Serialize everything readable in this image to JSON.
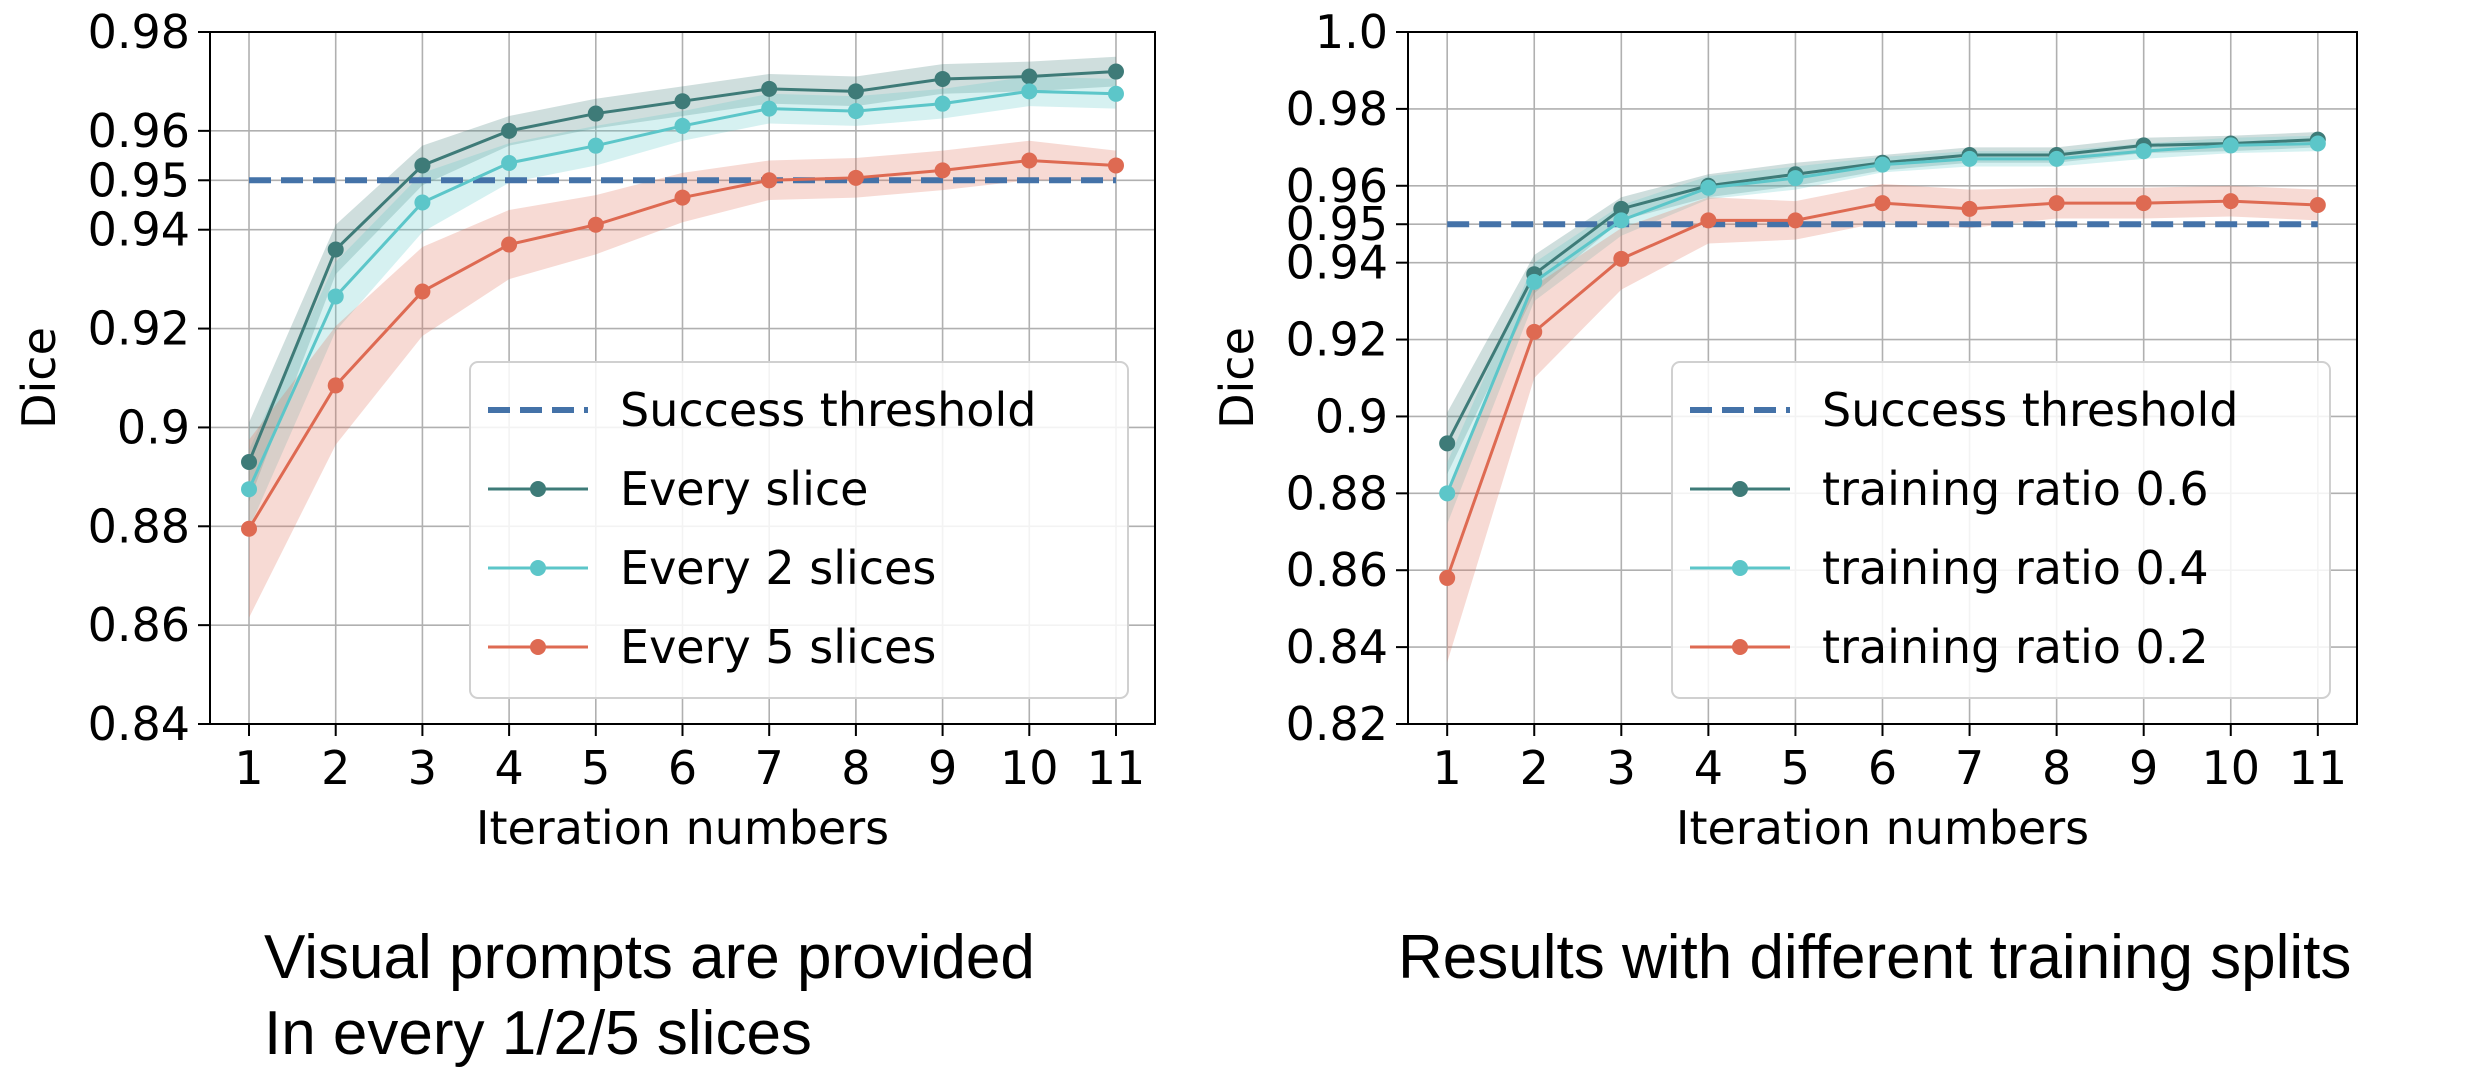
{
  "captions": {
    "left_line1": "Visual prompts are provided",
    "left_line2": "In every 1/2/5 slices",
    "right": "Results with different training splits"
  },
  "chart_data": [
    {
      "type": "line",
      "xlabel": "Iteration numbers",
      "ylabel": "Dice",
      "x": [
        1,
        2,
        3,
        4,
        5,
        6,
        7,
        8,
        9,
        10,
        11
      ],
      "xlim": [
        0.55,
        11.45
      ],
      "ylim": [
        0.84,
        0.98
      ],
      "yticks": [
        0.84,
        0.86,
        0.88,
        0.9,
        0.92,
        0.94,
        0.95,
        0.96,
        0.98
      ],
      "ytick_labels": [
        "0.84",
        "0.86",
        "0.88",
        "0.9",
        "0.92",
        "0.94",
        "0.95",
        "0.96",
        "0.98"
      ],
      "grid": true,
      "legend_position": "lower-right",
      "threshold": {
        "name": "Success threshold",
        "value": 0.95,
        "color": "#4472a8"
      },
      "series": [
        {
          "name": "Every slice",
          "color": "#3e7b78",
          "values": [
            0.893,
            0.936,
            0.953,
            0.96,
            0.9635,
            0.966,
            0.9685,
            0.968,
            0.9705,
            0.971,
            0.972
          ],
          "band": [
            0.008,
            0.005,
            0.004,
            0.003,
            0.003,
            0.003,
            0.003,
            0.003,
            0.003,
            0.003,
            0.003
          ]
        },
        {
          "name": "Every 2 slices",
          "color": "#5cc6c9",
          "values": [
            0.8875,
            0.9265,
            0.9455,
            0.9535,
            0.957,
            0.961,
            0.9645,
            0.964,
            0.9655,
            0.968,
            0.9675
          ],
          "band": [
            0.008,
            0.007,
            0.006,
            0.004,
            0.004,
            0.003,
            0.003,
            0.003,
            0.003,
            0.003,
            0.003
          ]
        },
        {
          "name": "Every 5 slices",
          "color": "#de6a52",
          "values": [
            0.8795,
            0.9085,
            0.9275,
            0.937,
            0.941,
            0.9465,
            0.95,
            0.9505,
            0.952,
            0.954,
            0.953
          ],
          "band": [
            0.018,
            0.012,
            0.009,
            0.007,
            0.006,
            0.005,
            0.004,
            0.004,
            0.004,
            0.004,
            0.003
          ]
        }
      ]
    },
    {
      "type": "line",
      "xlabel": "Iteration numbers",
      "ylabel": "Dice",
      "x": [
        1,
        2,
        3,
        4,
        5,
        6,
        7,
        8,
        9,
        10,
        11
      ],
      "xlim": [
        0.55,
        11.45
      ],
      "ylim": [
        0.82,
        1.0
      ],
      "yticks": [
        0.82,
        0.84,
        0.86,
        0.88,
        0.9,
        0.92,
        0.94,
        0.95,
        0.96,
        0.98,
        1.0
      ],
      "ytick_labels": [
        "0.82",
        "0.84",
        "0.86",
        "0.88",
        "0.9",
        "0.92",
        "0.94",
        "0.95",
        "0.96",
        "0.98",
        "1.0"
      ],
      "grid": true,
      "legend_position": "lower-right",
      "threshold": {
        "name": "Success threshold",
        "value": 0.95,
        "color": "#4472a8"
      },
      "series": [
        {
          "name": "training ratio 0.6",
          "color": "#3e7b78",
          "values": [
            0.893,
            0.937,
            0.954,
            0.96,
            0.963,
            0.966,
            0.968,
            0.968,
            0.9705,
            0.971,
            0.972
          ],
          "band": [
            0.008,
            0.005,
            0.003,
            0.003,
            0.003,
            0.002,
            0.002,
            0.002,
            0.002,
            0.002,
            0.002
          ]
        },
        {
          "name": "training ratio 0.4",
          "color": "#5cc6c9",
          "values": [
            0.88,
            0.935,
            0.951,
            0.9595,
            0.962,
            0.9655,
            0.967,
            0.967,
            0.969,
            0.9705,
            0.971
          ],
          "band": [
            0.008,
            0.005,
            0.004,
            0.003,
            0.003,
            0.002,
            0.002,
            0.002,
            0.002,
            0.002,
            0.002
          ]
        },
        {
          "name": "training ratio 0.2",
          "color": "#de6a52",
          "values": [
            0.858,
            0.922,
            0.941,
            0.951,
            0.951,
            0.9555,
            0.954,
            0.9555,
            0.9555,
            0.956,
            0.955
          ],
          "band": [
            0.022,
            0.012,
            0.008,
            0.006,
            0.005,
            0.005,
            0.005,
            0.004,
            0.004,
            0.004,
            0.004
          ]
        }
      ]
    }
  ]
}
